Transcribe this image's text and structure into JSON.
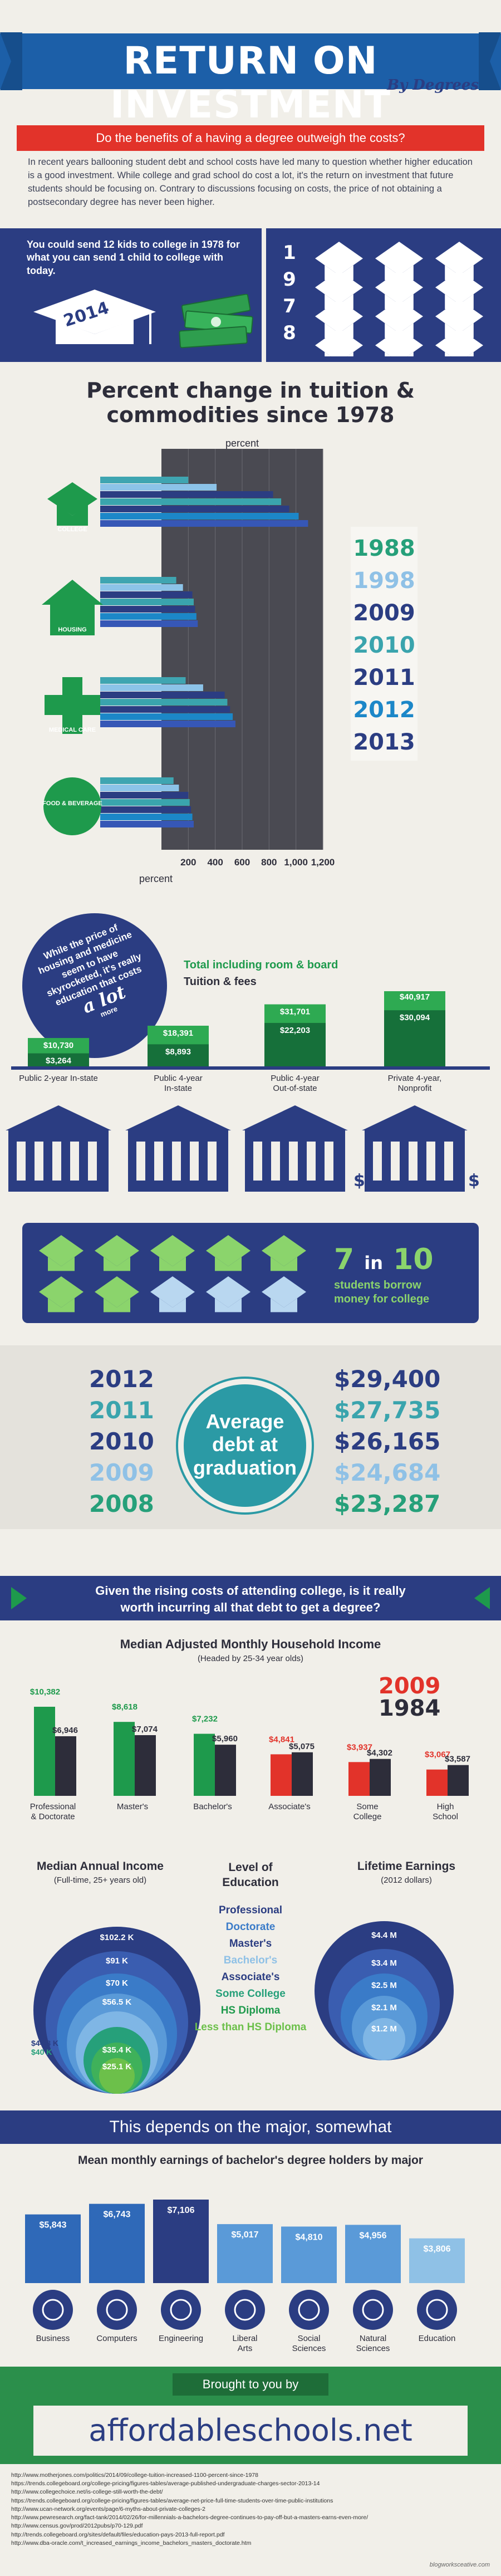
{
  "header": {
    "title": "RETURN ON INVESTMENT",
    "subtitle": "By Degrees",
    "question": "Do the benefits of a having a degree outweigh the costs?"
  },
  "intro": {
    "paragraph": "In recent years ballooning student debt and school costs have led many to question whether higher education is a good investment.  While college and grad school  do cost a lot, it's the return on investment that future students should be focusing on.  Contrary to discussions focusing on costs, the price of not obtaining a postsecondary degree has never been higher."
  },
  "money": {
    "text": "You could send 12 kids to college in 1978 for what you can send 1 child to college with today.",
    "year_old": "1978",
    "year_new": "2014",
    "cap_count_old": 12,
    "cap_count_new": 1
  },
  "tuition_chart": {
    "title_line1": "Percent change in tuition &",
    "title_line2": "commodities since 1978",
    "axis_top_label": "percent",
    "axis_bottom_label": "percent",
    "categories": [
      "COLLEGE",
      "HOUSING",
      "MEDICAL CARE",
      "FOOD & BEVERAGE"
    ],
    "years": [
      "1988",
      "1998",
      "2009",
      "2010",
      "2011",
      "2012",
      "2013"
    ],
    "year_colors": [
      "#26a07a",
      "#8fc1e6",
      "#2b3d82",
      "#3aa4ad",
      "#2b3d82",
      "#1c87c8",
      "#2b3d82"
    ],
    "ticks": [
      "200",
      "400",
      "600",
      "800",
      "1,000",
      "1,200"
    ]
  },
  "chart_data": [
    {
      "type": "bar",
      "title": "Percent change in tuition & commodities since 1978",
      "xlabel": "percent",
      "categories": [
        "COLLEGE",
        "HOUSING",
        "MEDICAL CARE",
        "FOOD & BEVERAGE"
      ],
      "x_range": [
        0,
        1200
      ],
      "series": [
        {
          "name": "1988",
          "values": [
            200,
            110,
            180,
            90
          ]
        },
        {
          "name": "1998",
          "values": [
            410,
            160,
            310,
            130
          ]
        },
        {
          "name": "2009",
          "values": [
            830,
            230,
            470,
            200
          ]
        },
        {
          "name": "2010",
          "values": [
            890,
            240,
            490,
            210
          ]
        },
        {
          "name": "2011",
          "values": [
            950,
            250,
            510,
            220
          ]
        },
        {
          "name": "2012",
          "values": [
            1020,
            260,
            530,
            230
          ]
        },
        {
          "name": "2013",
          "values": [
            1090,
            270,
            550,
            240
          ]
        }
      ]
    },
    {
      "type": "bar",
      "title": "Total including room & board / Tuition & fees",
      "categories": [
        "Public 2-year In-state",
        "Public 4-year In-state",
        "Public 4-year Out-of-state",
        "Private 4-year, Nonprofit"
      ],
      "series": [
        {
          "name": "Total including room & board",
          "values": [
            10730,
            18391,
            31701,
            40917
          ]
        },
        {
          "name": "Tuition & fees",
          "values": [
            3264,
            8893,
            22203,
            30094
          ]
        }
      ]
    },
    {
      "type": "bar",
      "title": "Median Adjusted Monthly Household Income",
      "categories": [
        "Professional & Doctorate",
        "Master's",
        "Bachelor's",
        "Associate's",
        "Some College",
        "High School"
      ],
      "series": [
        {
          "name": "2009",
          "values": [
            10382,
            8618,
            7232,
            4841,
            3937,
            3067
          ]
        },
        {
          "name": "1984",
          "values": [
            6946,
            7074,
            5960,
            5075,
            4302,
            3587
          ]
        }
      ]
    },
    {
      "type": "bar",
      "title": "Mean monthly earnings of bachelor's degree holders by major",
      "categories": [
        "Business",
        "Computers",
        "Engineering",
        "Liberal Arts",
        "Social Sciences",
        "Natural Sciences",
        "Education"
      ],
      "values": [
        5843,
        6743,
        7106,
        5017,
        4810,
        4956,
        3806
      ]
    }
  ],
  "housing_circle": {
    "line1": "While the price of",
    "line2": "housing and medicine",
    "line3": "seem to have",
    "line4": "skyrocketed, it's really",
    "line5": "education that costs",
    "line6": "a lot",
    "line7": "more"
  },
  "college_costs": {
    "legend_total": "Total including room & board",
    "legend_tuition": "Tuition & fees",
    "items": [
      {
        "label_line1": "Public 2-year In-state",
        "label_line2": "",
        "total": "$10,730",
        "tuition": "$3,264"
      },
      {
        "label_line1": "Public 4-year",
        "label_line2": "In-state",
        "total": "$18,391",
        "tuition": "$8,893"
      },
      {
        "label_line1": "Public 4-year",
        "label_line2": "Out-of-state",
        "total": "$31,701",
        "tuition": "$22,203"
      },
      {
        "label_line1": "Private 4-year,",
        "label_line2": "Nonprofit",
        "total": "$40,917",
        "tuition": "$30,094"
      }
    ]
  },
  "borrow": {
    "number": "7",
    "in": "in",
    "ten": "10",
    "line1": "students borrow",
    "line2": "money for college"
  },
  "debt": {
    "label_line1": "Average",
    "label_line2": "debt at",
    "label_line3": "graduation",
    "rows": [
      {
        "year": "2012",
        "amount": "$29,400",
        "year_color": "#2b3d82",
        "amount_color": "#2b3d82"
      },
      {
        "year": "2011",
        "amount": "$27,735",
        "year_color": "#3aa4ad",
        "amount_color": "#3aa4ad"
      },
      {
        "year": "2010",
        "amount": "$26,165",
        "year_color": "#2b3d82",
        "amount_color": "#2b3d82"
      },
      {
        "year": "2009",
        "amount": "$24,684",
        "year_color": "#8fc1e6",
        "amount_color": "#8fc1e6"
      },
      {
        "year": "2008",
        "amount": "$23,287",
        "year_color": "#26a07a",
        "amount_color": "#26a07a"
      }
    ]
  },
  "rising": {
    "line1": "Given the rising costs of attending college, is it really",
    "line2": "worth incurring all that debt to get a degree?"
  },
  "income": {
    "title": "Median Adjusted Monthly Household Income",
    "subtitle": "(Headed by 25-34 year olds)",
    "year_new": "2009",
    "year_old": "1984",
    "items": [
      {
        "label_line1": "Professional",
        "label_line2": "& Doctorate",
        "v2009": "$10,382",
        "v1984": "$6,946",
        "n2009": 10382,
        "n1984": 6946,
        "color": "#1e9a4c"
      },
      {
        "label_line1": "Master's",
        "label_line2": "",
        "v2009": "$8,618",
        "v1984": "$7,074",
        "n2009": 8618,
        "n1984": 7074,
        "color": "#1e9a4c"
      },
      {
        "label_line1": "Bachelor's",
        "label_line2": "",
        "v2009": "$7,232",
        "v1984": "$5,960",
        "n2009": 7232,
        "n1984": 5960,
        "color": "#1e9a4c"
      },
      {
        "label_line1": "Associate's",
        "label_line2": "",
        "v2009": "$4,841",
        "v1984": "$5,075",
        "n2009": 4841,
        "n1984": 5075,
        "color": "#e2332a"
      },
      {
        "label_line1": "Some",
        "label_line2": "College",
        "v2009": "$3,937",
        "v1984": "$4,302",
        "n2009": 3937,
        "n1984": 4302,
        "color": "#e2332a"
      },
      {
        "label_line1": "High",
        "label_line2": "School",
        "v2009": "$3,067",
        "v1984": "$3,587",
        "n2009": 3067,
        "n1984": 3587,
        "color": "#e2332a"
      }
    ]
  },
  "education_levels": {
    "col1_title": "Median Annual Income",
    "col1_sub": "(Full-time, 25+ years old)",
    "col2_title_line1": "Level of",
    "col2_title_line2": "Education",
    "col3_title": "Lifetime Earnings",
    "col3_sub": "(2012 dollars)",
    "levels": [
      {
        "name": "Professional",
        "color": "#2b3d82"
      },
      {
        "name": "Doctorate",
        "color": "#3a7bc8"
      },
      {
        "name": "Master's",
        "color": "#2b3d82"
      },
      {
        "name": "Bachelor's",
        "color": "#8fc1e6"
      },
      {
        "name": "Associate's",
        "color": "#2b3d82"
      },
      {
        "name": "Some College",
        "color": "#26a07a"
      },
      {
        "name": "HS Diploma",
        "color": "#1e9a4c"
      },
      {
        "name": "Less than HS Diploma",
        "color": "#6cc04a"
      }
    ],
    "annual": [
      "$102.2 K",
      "$91 K",
      "$70 K",
      "$56.5 K",
      "$44.8 K",
      "$40 K",
      "$35.4 K",
      "$25.1 K"
    ],
    "lifetime": [
      "$4.4 M",
      "$3.4 M",
      "$2.5 M",
      "$2.1 M",
      "$1.2 M"
    ]
  },
  "major": {
    "bar_text": "This depends on the major, somewhat",
    "title": "Mean monthly earnings of bachelor's degree holders by major",
    "items": [
      {
        "name_line1": "Business",
        "name_line2": "",
        "value": "$5,843",
        "n": 5843,
        "icon": "briefcase-icon"
      },
      {
        "name_line1": "Computers",
        "name_line2": "",
        "value": "$6,743",
        "n": 6743,
        "icon": "computer-icon"
      },
      {
        "name_line1": "Engineering",
        "name_line2": "",
        "value": "$7,106",
        "n": 7106,
        "icon": "gear-icon"
      },
      {
        "name_line1": "Liberal",
        "name_line2": "Arts",
        "value": "$5,017",
        "n": 5017,
        "icon": "lyre-icon"
      },
      {
        "name_line1": "Social",
        "name_line2": "Sciences",
        "value": "$4,810",
        "n": 4810,
        "icon": "globe-icon"
      },
      {
        "name_line1": "Natural",
        "name_line2": "Sciences",
        "value": "$4,956",
        "n": 4956,
        "icon": "atom-icon"
      },
      {
        "name_line1": "Education",
        "name_line2": "",
        "value": "$3,806",
        "n": 3806,
        "icon": "apple-icon"
      }
    ]
  },
  "footer": {
    "brought": "Brought to you by",
    "site": "affordableschools.net",
    "credit": "blogworksceative.com",
    "sources": [
      "http://www.motherjones.com/politics/2014/09/college-tuition-increased-1100-percent-since-1978",
      "https://trends.collegeboard.org/college-pricing/figures-tables/average-published-undergraduate-charges-sector-2013-14",
      "http://www.collegechoice.net/is-college-still-worth-the-debt/",
      "https://trends.collegeboard.org/college-pricing/figures-tables/average-net-price-full-time-students-over-time-public-institutions",
      "http://www.ucan-network.org/events/page/6-myths-about-private-colleges-2",
      "http://www.pewresearch.org/fact-tank/2014/02/26/for-millennials-a-bachelors-degree-continues-to-pay-off-but-a-masters-earns-even-more/",
      "http://www.census.gov/prod/2012pubs/p70-129.pdf",
      "http://trends.collegeboard.org/sites/default/files/education-pays-2013-full-report.pdf",
      "http://www.dba-oracle.com/t_increased_earnings_income_bachelors_masters_doctorate.htm"
    ]
  }
}
